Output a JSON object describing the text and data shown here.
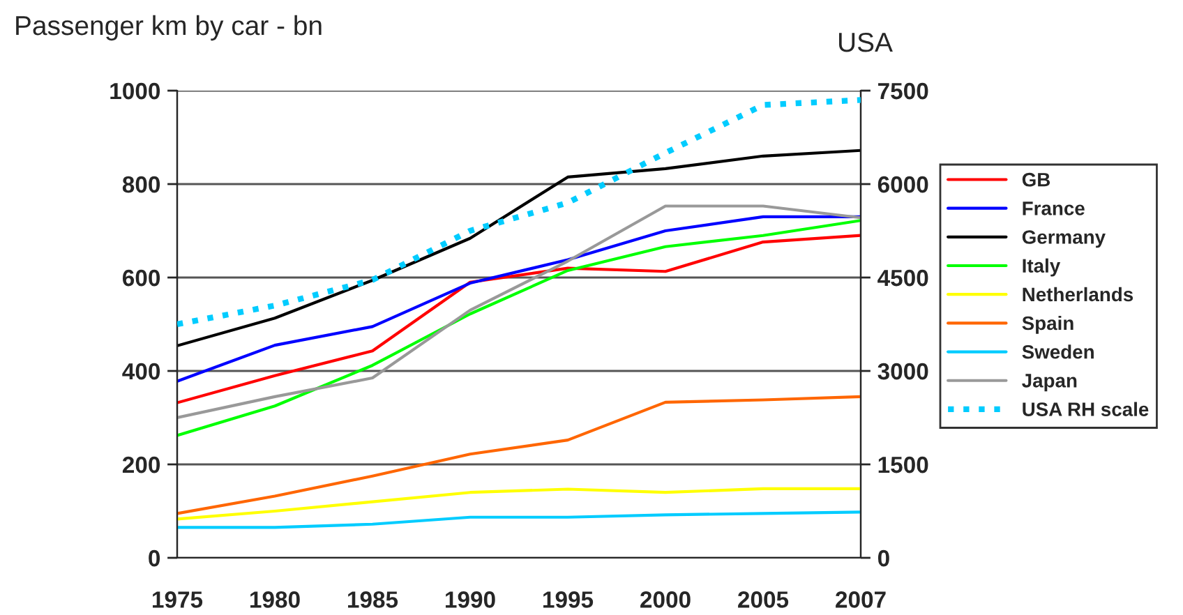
{
  "chart_data": {
    "type": "line",
    "title": "Passenger km by car - bn",
    "y2label": "USA",
    "categories": [
      "1975",
      "1980",
      "1985",
      "1990",
      "1995",
      "2000",
      "2005",
      "2007"
    ],
    "series": [
      {
        "name": "GB",
        "color": "#ff0000",
        "values": [
          332,
          390,
          443,
          590,
          620,
          613,
          676,
          690
        ]
      },
      {
        "name": "France",
        "color": "#0000ff",
        "values": [
          378,
          455,
          495,
          588,
          638,
          700,
          730,
          730
        ]
      },
      {
        "name": "Germany",
        "color": "#000000",
        "values": [
          454,
          513,
          594,
          684,
          815,
          833,
          860,
          872
        ]
      },
      {
        "name": "Italy",
        "color": "#00ff00",
        "values": [
          262,
          325,
          412,
          522,
          615,
          666,
          690,
          722
        ]
      },
      {
        "name": "Netherlands",
        "color": "#ffff00",
        "values": [
          83,
          100,
          120,
          140,
          147,
          140,
          148,
          148
        ]
      },
      {
        "name": "Spain",
        "color": "#ff6600",
        "values": [
          95,
          132,
          175,
          222,
          252,
          333,
          338,
          345
        ]
      },
      {
        "name": "Sweden",
        "color": "#00ccff",
        "values": [
          65,
          65,
          72,
          87,
          87,
          92,
          95,
          98
        ]
      },
      {
        "name": "Japan",
        "color": "#999999",
        "values": [
          300,
          345,
          385,
          530,
          635,
          753,
          753,
          728
        ]
      },
      {
        "name": "USA RH scale",
        "color": "#00ccff",
        "axis": "y2",
        "line_style": "dotted",
        "values": [
          3750,
          4050,
          4460,
          5250,
          5700,
          6500,
          7270,
          7350
        ]
      }
    ],
    "ylim": [
      0,
      1000
    ],
    "yticks": [
      0,
      200,
      400,
      600,
      800,
      1000
    ],
    "y2lim": [
      0,
      7500
    ],
    "y2ticks": [
      0,
      1500,
      3000,
      4500,
      6000,
      7500
    ],
    "grid": "y",
    "legend": "right"
  }
}
